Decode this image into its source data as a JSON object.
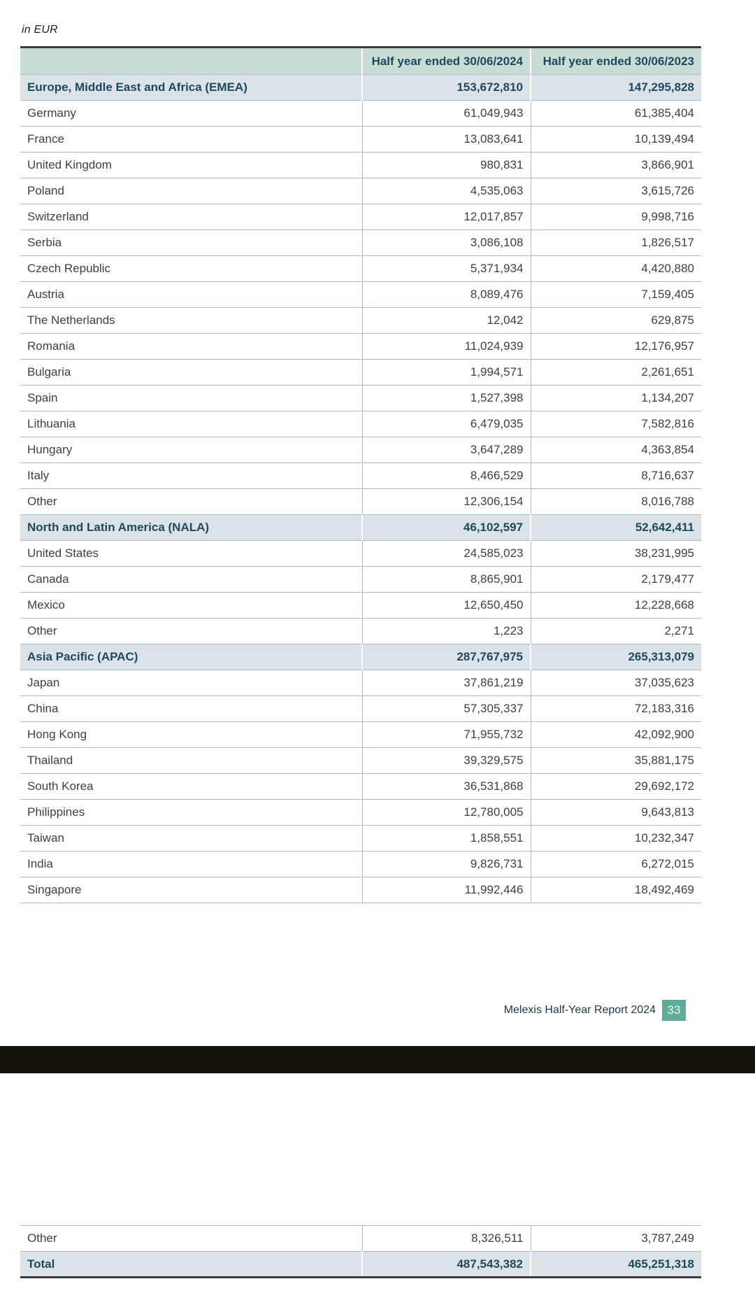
{
  "currency_note": "in EUR",
  "colors": {
    "header_bg": "#c9ddd6",
    "section_bg": "#dce3e8",
    "accent_text": "#1b4a5e",
    "body_text": "#3f3f3f",
    "row_line": "#aebcc4",
    "dark_line": "#3c3c3c",
    "badge_bg": "#5dac9a",
    "black_bar": "#14120b"
  },
  "table": {
    "columns": [
      "",
      "Half year ended 30/06/2024",
      "Half year ended 30/06/2023"
    ],
    "rows": [
      {
        "type": "section",
        "label": "Europe, Middle East and Africa (EMEA)",
        "v2024": "153,672,810",
        "v2023": "147,295,828"
      },
      {
        "type": "item",
        "label": "Germany",
        "v2024": "61,049,943",
        "v2023": "61,385,404"
      },
      {
        "type": "item",
        "label": "France",
        "v2024": "13,083,641",
        "v2023": "10,139,494"
      },
      {
        "type": "item",
        "label": "United Kingdom",
        "v2024": "980,831",
        "v2023": "3,866,901"
      },
      {
        "type": "item",
        "label": "Poland",
        "v2024": "4,535,063",
        "v2023": "3,615,726"
      },
      {
        "type": "item",
        "label": "Switzerland",
        "v2024": "12,017,857",
        "v2023": "9,998,716"
      },
      {
        "type": "item",
        "label": "Serbia",
        "v2024": "3,086,108",
        "v2023": "1,826,517"
      },
      {
        "type": "item",
        "label": "Czech Republic",
        "v2024": "5,371,934",
        "v2023": "4,420,880"
      },
      {
        "type": "item",
        "label": "Austria",
        "v2024": "8,089,476",
        "v2023": "7,159,405"
      },
      {
        "type": "item",
        "label": "The Netherlands",
        "v2024": "12,042",
        "v2023": "629,875"
      },
      {
        "type": "item",
        "label": "Romania",
        "v2024": "11,024,939",
        "v2023": "12,176,957"
      },
      {
        "type": "item",
        "label": "Bulgaria",
        "v2024": "1,994,571",
        "v2023": "2,261,651"
      },
      {
        "type": "item",
        "label": "Spain",
        "v2024": "1,527,398",
        "v2023": "1,134,207"
      },
      {
        "type": "item",
        "label": "Lithuania",
        "v2024": "6,479,035",
        "v2023": "7,582,816"
      },
      {
        "type": "item",
        "label": "Hungary",
        "v2024": "3,647,289",
        "v2023": "4,363,854"
      },
      {
        "type": "item",
        "label": "Italy",
        "v2024": "8,466,529",
        "v2023": "8,716,637"
      },
      {
        "type": "item",
        "label": "Other",
        "v2024": "12,306,154",
        "v2023": "8,016,788"
      },
      {
        "type": "section",
        "label": "North and Latin America (NALA)",
        "v2024": "46,102,597",
        "v2023": "52,642,411"
      },
      {
        "type": "item",
        "label": "United States",
        "v2024": "24,585,023",
        "v2023": "38,231,995"
      },
      {
        "type": "item",
        "label": "Canada",
        "v2024": "8,865,901",
        "v2023": "2,179,477"
      },
      {
        "type": "item",
        "label": "Mexico",
        "v2024": "12,650,450",
        "v2023": "12,228,668"
      },
      {
        "type": "item",
        "label": "Other",
        "v2024": "1,223",
        "v2023": "2,271"
      },
      {
        "type": "section",
        "label": "Asia Pacific (APAC)",
        "v2024": "287,767,975",
        "v2023": "265,313,079"
      },
      {
        "type": "item",
        "label": "Japan",
        "v2024": "37,861,219",
        "v2023": "37,035,623"
      },
      {
        "type": "item",
        "label": "China",
        "v2024": "57,305,337",
        "v2023": "72,183,316"
      },
      {
        "type": "item",
        "label": "Hong Kong",
        "v2024": "71,955,732",
        "v2023": "42,092,900"
      },
      {
        "type": "item",
        "label": "Thailand",
        "v2024": "39,329,575",
        "v2023": "35,881,175"
      },
      {
        "type": "item",
        "label": "South Korea",
        "v2024": "36,531,868",
        "v2023": "29,692,172"
      },
      {
        "type": "item",
        "label": "Philippines",
        "v2024": "12,780,005",
        "v2023": "9,643,813"
      },
      {
        "type": "item",
        "label": "Taiwan",
        "v2024": "1,858,551",
        "v2023": "10,232,347"
      },
      {
        "type": "item",
        "label": "India",
        "v2024": "9,826,731",
        "v2023": "6,272,015"
      },
      {
        "type": "item",
        "label": "Singapore",
        "v2024": "11,992,446",
        "v2023": "18,492,469"
      }
    ]
  },
  "bottom_table": {
    "rows": [
      {
        "type": "item",
        "label": "Other",
        "v2024": "8,326,511",
        "v2023": "3,787,249"
      },
      {
        "type": "total",
        "label": "Total",
        "v2024": "487,543,382",
        "v2023": "465,251,318"
      }
    ]
  },
  "footer": {
    "report_title": "Melexis Half-Year Report 2024",
    "page_number": "33"
  }
}
